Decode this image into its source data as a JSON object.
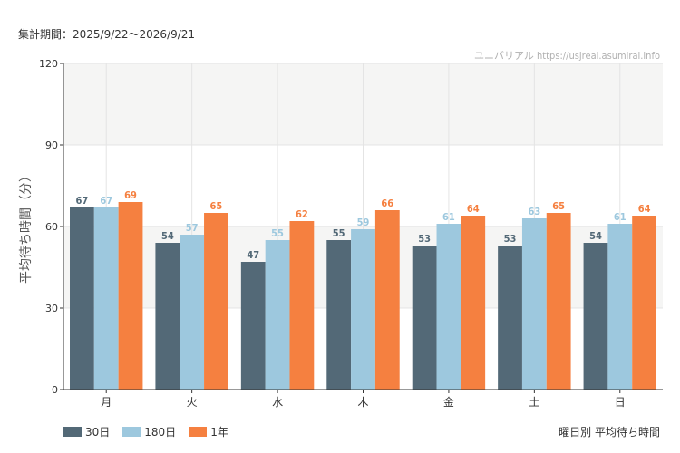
{
  "header": {
    "period_text": "集計期間：2025/9/22〜2026/9/21",
    "watermark": "ユニバリアル  https://usjreal.asumirai.info"
  },
  "footer": {
    "subtitle": "曜日別 平均待ち時間"
  },
  "colors": {
    "series30": "#536977",
    "series180": "#9dc8de",
    "series1y": "#f58040",
    "band": "#f5f5f4",
    "grid": "#e4e4e4",
    "axis": "#333333"
  },
  "chart_data": {
    "type": "bar",
    "categories": [
      "月",
      "火",
      "水",
      "木",
      "金",
      "土",
      "日"
    ],
    "series": [
      {
        "name": "30日",
        "values": [
          67,
          54,
          47,
          55,
          53,
          53,
          54
        ]
      },
      {
        "name": "180日",
        "values": [
          67,
          57,
          55,
          59,
          61,
          63,
          61
        ]
      },
      {
        "name": "1年",
        "values": [
          69,
          65,
          62,
          66,
          64,
          65,
          64
        ]
      }
    ],
    "ylabel": "平均待ち時間（分）",
    "xlabel": "",
    "ylim": [
      0,
      120
    ],
    "yticks": [
      0,
      30,
      60,
      90,
      120
    ],
    "grid": true,
    "legend_position": "bottom-left",
    "data_labels": true
  }
}
